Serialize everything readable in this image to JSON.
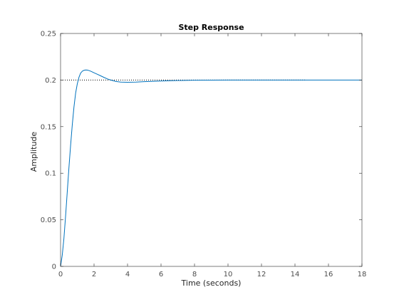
{
  "chart_data": {
    "type": "line",
    "title": "Step Response",
    "xlabel": "Time (seconds)",
    "ylabel": "Amplitude",
    "xlim": [
      0,
      18
    ],
    "ylim": [
      0,
      0.25
    ],
    "x_ticks": [
      0,
      2,
      4,
      6,
      8,
      10,
      12,
      14,
      16,
      18
    ],
    "x_tick_labels": [
      "0",
      "2",
      "4",
      "6",
      "8",
      "10",
      "12",
      "14",
      "16",
      "18"
    ],
    "y_ticks": [
      0,
      0.05,
      0.1,
      0.15,
      0.2,
      0.25
    ],
    "y_tick_labels": [
      "0",
      "0.05",
      "0.1",
      "0.15",
      "0.2",
      "0.25"
    ],
    "grid": false,
    "series": [
      {
        "style": "solid",
        "color": "#0072bd",
        "x": [
          0,
          0.1,
          0.2,
          0.3,
          0.4,
          0.5,
          0.6,
          0.7,
          0.8,
          0.9,
          1.0,
          1.1,
          1.2,
          1.3,
          1.4,
          1.5,
          1.6,
          1.7,
          1.8,
          1.9,
          2.0,
          2.2,
          2.4,
          2.6,
          2.8,
          3.0,
          3.3,
          3.6,
          4.0,
          4.5,
          5.0,
          6.0,
          7.0,
          8.0,
          10.0,
          12.0,
          14.0,
          14.6,
          18.0
        ],
        "y": [
          0,
          0.012,
          0.03,
          0.054,
          0.08,
          0.106,
          0.13,
          0.152,
          0.171,
          0.186,
          0.196,
          0.203,
          0.2075,
          0.2095,
          0.2105,
          0.2108,
          0.2107,
          0.2102,
          0.2095,
          0.2087,
          0.2078,
          0.2062,
          0.2045,
          0.2028,
          0.2012,
          0.2,
          0.1985,
          0.1978,
          0.1976,
          0.1978,
          0.1983,
          0.199,
          0.1995,
          0.1998,
          0.2,
          0.2,
          0.2,
          0.2,
          0.2
        ]
      }
    ],
    "reference_line": {
      "y": 0.2,
      "style": "dotted",
      "color": "#000000",
      "x_range": [
        0,
        14.6
      ]
    }
  }
}
